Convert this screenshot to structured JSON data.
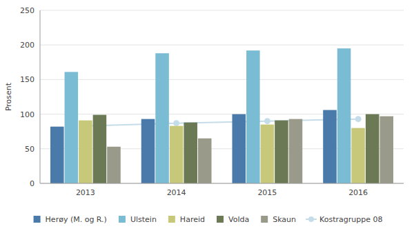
{
  "chart_data": {
    "type": "bar",
    "categories": [
      "2013",
      "2014",
      "2015",
      "2016"
    ],
    "series": [
      {
        "name": "Herøy (M. og R.)",
        "color": "#4a7aaa",
        "values": [
          82,
          93,
          100,
          106
        ]
      },
      {
        "name": "Ulstein",
        "color": "#7bbcd5",
        "values": [
          161,
          188,
          192,
          195
        ]
      },
      {
        "name": "Hareid",
        "color": "#c8c87a",
        "values": [
          91,
          83,
          85,
          80
        ]
      },
      {
        "name": "Volda",
        "color": "#6b7a55",
        "values": [
          99,
          88,
          91,
          100
        ]
      },
      {
        "name": "Skaun",
        "color": "#9a9a8a",
        "values": [
          53,
          65,
          93,
          97
        ]
      },
      {
        "name": "Kostragruppe 08",
        "type": "line",
        "marker": "circle",
        "color": "#c5dde8",
        "values": [
          83,
          87,
          90,
          93
        ]
      }
    ],
    "ylabel": "Prosent",
    "ylim": [
      0,
      250
    ],
    "yticks": [
      0,
      50,
      100,
      150,
      200,
      250
    ],
    "grid": true,
    "legend": "bottom"
  }
}
